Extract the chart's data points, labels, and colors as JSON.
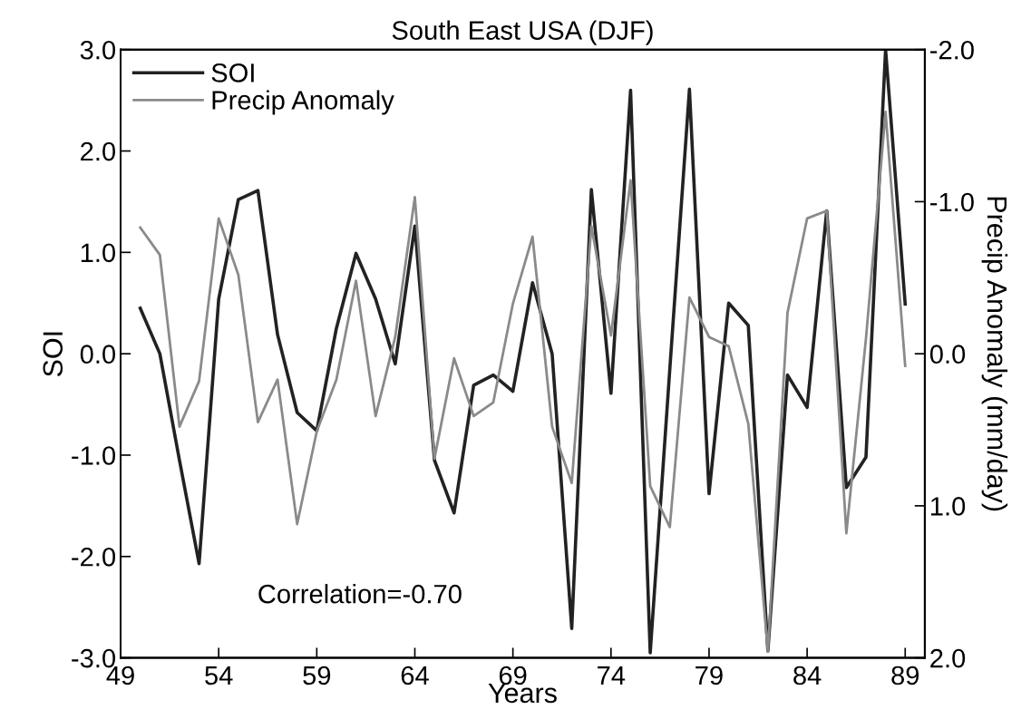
{
  "chart_data": {
    "type": "line",
    "title": "South East USA (DJF)",
    "xlabel": "Years",
    "ylabel": "SOI",
    "y2label": "Precip Anomaly (mm/day)",
    "x": [
      50,
      51,
      52,
      53,
      54,
      55,
      56,
      57,
      58,
      59,
      60,
      61,
      62,
      63,
      64,
      65,
      66,
      67,
      68,
      69,
      70,
      71,
      72,
      73,
      74,
      75,
      76,
      77,
      78,
      79,
      80,
      81,
      82,
      83,
      84,
      85,
      86,
      87,
      88,
      89
    ],
    "series": [
      {
        "name": "SOI",
        "color": "#222222",
        "values": [
          0.45,
          0.0,
          -1.05,
          -2.07,
          0.54,
          1.52,
          1.61,
          0.19,
          -0.58,
          -0.76,
          0.25,
          0.99,
          0.54,
          -0.1,
          1.26,
          -1.05,
          -1.57,
          -0.31,
          -0.21,
          -0.37,
          0.7,
          0.0,
          -2.71,
          1.62,
          -0.39,
          2.6,
          -2.95,
          -0.15,
          2.61,
          -1.38,
          0.5,
          0.28,
          -2.93,
          -0.21,
          -0.53,
          1.41,
          -1.32,
          -1.02,
          3.0,
          0.49
        ]
      },
      {
        "name": "Precip Anomaly",
        "color": "#8a8a8a",
        "axis": "y2",
        "values": [
          -0.83,
          -0.65,
          0.48,
          0.18,
          -0.89,
          -0.52,
          0.45,
          0.17,
          1.12,
          0.51,
          0.17,
          -0.48,
          0.41,
          -0.11,
          -1.03,
          0.69,
          0.03,
          0.41,
          0.32,
          -0.33,
          -0.77,
          0.48,
          0.85,
          -0.84,
          -0.12,
          -1.14,
          0.87,
          1.14,
          -0.37,
          -0.11,
          -0.05,
          0.46,
          1.96,
          -0.27,
          -0.89,
          -0.94,
          1.18,
          -0.1,
          -1.59,
          0.08
        ]
      }
    ],
    "xlim": [
      49,
      90
    ],
    "xticks": [
      49,
      54,
      59,
      64,
      69,
      74,
      79,
      84,
      89
    ],
    "ylim": [
      -3,
      3
    ],
    "yticks": [
      {
        "value": -3,
        "label": "-3.0"
      },
      {
        "value": -2,
        "label": "-2.0"
      },
      {
        "value": -1,
        "label": "-1.0"
      },
      {
        "value": 0,
        "label": "0.0"
      },
      {
        "value": 1,
        "label": "1.0"
      },
      {
        "value": 2,
        "label": "2.0"
      },
      {
        "value": 3,
        "label": "3.0"
      }
    ],
    "y2lim": [
      2,
      -2
    ],
    "y2ticks": [
      {
        "value": -2,
        "label": "-2.0"
      },
      {
        "value": -1,
        "label": "-1.0"
      },
      {
        "value": 0,
        "label": "0.0"
      },
      {
        "value": 1,
        "label": "1.0"
      },
      {
        "value": 2,
        "label": "2.0"
      }
    ],
    "annotations": [
      "Correlation=-0.70"
    ],
    "legend": "top left",
    "grid": false,
    "marker": "none",
    "line_style": "solid"
  }
}
